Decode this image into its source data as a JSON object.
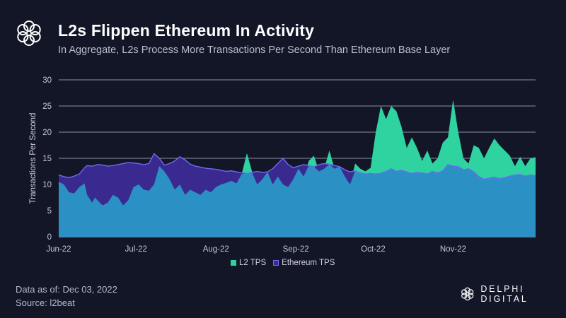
{
  "header": {
    "title": "L2s Flippen Ethereum In Activity",
    "subtitle": "In Aggregate, L2s Process More Transactions Per Second Than Ethereum Base Layer"
  },
  "footer": {
    "date": "Data as of: Dec 03, 2022",
    "source": "Source: l2beat",
    "brand": "DELPHI DIGITAL"
  },
  "colors": {
    "background": "#121627",
    "l2_tps": "#2ed3a0",
    "ethereum_tps": "#3a2a8f",
    "ethereum_line": "#6a6cf0",
    "overlap_fill": "#2b90c4",
    "grid": "#b9b9c9",
    "axis_text": "#c5c5d6"
  },
  "chart_data": {
    "type": "area",
    "title": "L2s Flippen Ethereum In Activity",
    "xlabel": "",
    "ylabel": "Transactions Per Second",
    "ylim": [
      0,
      30
    ],
    "yticks": [
      0,
      5,
      10,
      15,
      20,
      25,
      30
    ],
    "grid": true,
    "x_ticks": [
      "Jun-22",
      "Jul-22",
      "Aug-22",
      "Sep-22",
      "Oct-22",
      "Nov-22"
    ],
    "x_start": "2022-06-01",
    "x_end": "2022-12-03",
    "legend": [
      "L2 TPS",
      "Ethereum TPS"
    ],
    "legend_position": "bottom",
    "series": [
      {
        "name": "L2 TPS",
        "day_offsets": [
          0,
          2,
          4,
          6,
          8,
          10,
          11,
          13,
          14,
          15,
          17,
          19,
          21,
          23,
          25,
          27,
          29,
          31,
          33,
          35,
          37,
          39,
          41,
          43,
          45,
          47,
          49,
          51,
          53,
          55,
          57,
          59,
          61,
          63,
          65,
          67,
          69,
          71,
          73,
          75,
          77,
          79,
          81,
          83,
          85,
          87,
          89,
          91,
          93,
          95,
          97,
          99,
          101,
          103,
          105,
          107,
          109,
          111,
          113,
          115,
          117,
          119,
          121,
          123,
          125,
          127,
          129,
          131,
          133,
          135,
          137,
          139,
          141,
          143,
          145,
          147,
          149,
          151,
          153,
          155,
          157,
          159,
          161,
          163,
          165,
          167,
          169,
          171,
          173,
          175,
          177,
          179,
          181,
          183,
          185
        ],
        "values": [
          10.5,
          10,
          8.5,
          8.3,
          9.5,
          10.2,
          8,
          6.5,
          7.5,
          7,
          6,
          6.5,
          8,
          7.5,
          6,
          7,
          9.5,
          10,
          9,
          8.8,
          10,
          13.5,
          12.5,
          11,
          9,
          10,
          8,
          9,
          8.5,
          8,
          9,
          8.5,
          9.5,
          10,
          10.3,
          10.7,
          10.2,
          12,
          16,
          12.5,
          10,
          11,
          12.5,
          10,
          11.5,
          10,
          9.5,
          11,
          13,
          11.5,
          14.5,
          15.5,
          12.5,
          13,
          16.5,
          13,
          13.5,
          11.5,
          10,
          14,
          13,
          12.5,
          13.2,
          20,
          25,
          22.5,
          25,
          24,
          21,
          17,
          19,
          17,
          14.5,
          16.5,
          14,
          15,
          18,
          19,
          26.2,
          20,
          15,
          14,
          17.5,
          17,
          15,
          17,
          18.8,
          17.5,
          16.5,
          15.5,
          13.5,
          15.3,
          13.5,
          15,
          15.2
        ]
      },
      {
        "name": "Ethereum TPS",
        "day_offsets": [
          0,
          2,
          4,
          6,
          8,
          10,
          11,
          13,
          14,
          15,
          17,
          19,
          21,
          23,
          25,
          27,
          29,
          31,
          33,
          35,
          37,
          39,
          41,
          43,
          45,
          47,
          49,
          51,
          53,
          55,
          57,
          59,
          61,
          63,
          65,
          67,
          69,
          71,
          73,
          75,
          77,
          79,
          81,
          83,
          85,
          87,
          89,
          91,
          93,
          95,
          97,
          99,
          101,
          103,
          105,
          107,
          109,
          111,
          113,
          115,
          117,
          119,
          121,
          123,
          125,
          127,
          129,
          131,
          133,
          135,
          137,
          139,
          141,
          143,
          145,
          147,
          149,
          151,
          153,
          155,
          157,
          159,
          161,
          163,
          165,
          167,
          169,
          171,
          173,
          175,
          177,
          179,
          181,
          183,
          185
        ],
        "values": [
          11.8,
          11.5,
          11.3,
          11.6,
          12,
          13.2,
          13.6,
          13.5,
          13.6,
          13.8,
          13.7,
          13.5,
          13.6,
          13.8,
          14,
          14.2,
          14.1,
          14,
          13.8,
          14,
          15.9,
          15,
          13.7,
          14,
          14.5,
          15.3,
          14.7,
          13.9,
          13.5,
          13.3,
          13.1,
          13,
          12.9,
          12.7,
          12.5,
          12.6,
          12.4,
          12.2,
          12.1,
          12.3,
          12.5,
          12.3,
          12.4,
          13,
          14,
          15,
          13.8,
          13.2,
          13.5,
          13.8,
          13.6,
          13.4,
          13.8,
          14,
          13.9,
          13.6,
          13.4,
          12.8,
          12.4,
          12.6,
          12.2,
          12,
          12.1,
          12,
          12.1,
          12.5,
          13,
          12.5,
          12.7,
          12.4,
          12.1,
          12.3,
          12.2,
          12,
          12.5,
          12.2,
          12.6,
          13.8,
          13.5,
          13.4,
          12.8,
          13,
          12.4,
          11.5,
          11,
          11.2,
          11.4,
          11.1,
          11.3,
          11.6,
          11.8,
          11.9,
          11.6,
          11.8,
          11.7
        ]
      }
    ]
  }
}
